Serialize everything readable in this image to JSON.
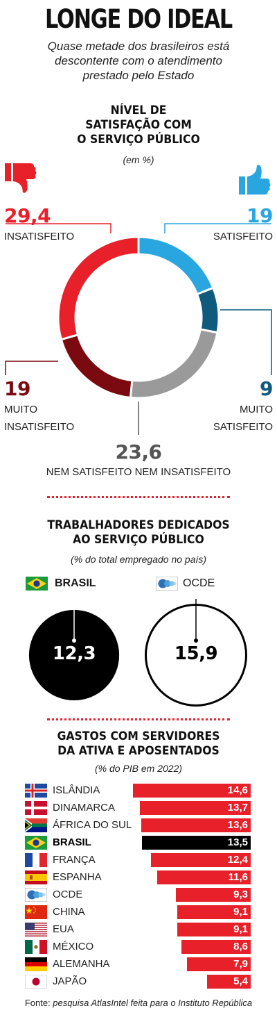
{
  "header": {
    "title": "LONGE DO IDEAL",
    "subtitle": [
      "Quase metade dos brasileiros está",
      "descontente com o atendimento",
      "prestado pelo Estado"
    ]
  },
  "colors": {
    "red": "#e8202a",
    "dark_red": "#7a0a0f",
    "gray": "#9a9a9a",
    "light_blue": "#29a6df",
    "dark_blue": "#0f5a7d",
    "black": "#000000"
  },
  "section1": {
    "title": [
      "NÍVEL DE",
      "SATISFAÇÃO COM",
      "O SERVIÇO PÚBLICO"
    ],
    "unit": "(em %)",
    "labels": {
      "insatisfeito_value": "29,4",
      "insatisfeito_label": "INSATISFEITO",
      "satisfeito_value": "19",
      "satisfeito_label": "SATISFEITO",
      "muito_insatisfeito_value": "19",
      "muito_insatisfeito_label": [
        "MUITO",
        "INSATISFEITO"
      ],
      "muito_satisfeito_value": "9",
      "muito_satisfeito_label": [
        "MUITO",
        "SATISFEITO"
      ],
      "nem_value": "23,6",
      "nem_label": "NEM SATISFEITO NEM INSATISFEITO"
    },
    "icons": [
      "thumbs-down-icon",
      "thumbs-up-icon"
    ]
  },
  "section2": {
    "title": [
      "TRABALHADORES DEDICADOS",
      "AO SERVIÇO PÚBLICO"
    ],
    "unit": "(% do total empregado no país)",
    "brasil_label": "BRASIL",
    "brasil_value": "12,3",
    "ocde_label": "OCDE",
    "ocde_value": "15,9"
  },
  "section3": {
    "title": [
      "GASTOS COM SERVIDORES",
      "DA ATIVA E APOSENTADOS"
    ],
    "unit": "(% do PIB em 2022)"
  },
  "chart_data": [
    {
      "type": "pie",
      "title": "NÍVEL DE SATISFAÇÃO COM O SERVIÇO PÚBLICO",
      "unit": "(em %)",
      "slices": [
        {
          "label": "SATISFEITO",
          "value": 19,
          "color": "#29a6df"
        },
        {
          "label": "MUITO SATISFEITO",
          "value": 9,
          "color": "#0f5a7d"
        },
        {
          "label": "NEM SATISFEITO NEM INSATISFEITO",
          "value": 23.6,
          "color": "#9a9a9a"
        },
        {
          "label": "MUITO INSATISFEITO",
          "value": 19,
          "color": "#7a0a0f"
        },
        {
          "label": "INSATISFEITO",
          "value": 29.4,
          "color": "#e8202a"
        }
      ]
    },
    {
      "type": "bar",
      "title": "TRABALHADORES DEDICADOS AO SERVIÇO PÚBLICO",
      "unit": "(% do total empregado no país)",
      "categories": [
        "BRASIL",
        "OCDE"
      ],
      "values": [
        12.3,
        15.9
      ]
    },
    {
      "type": "bar",
      "title": "GASTOS COM SERVIDORES DA ATIVA E APOSENTADOS",
      "unit": "(% do PIB em 2022)",
      "categories": [
        "ISLÂNDIA",
        "DINAMARCA",
        "ÁFRICA DO SUL",
        "BRASIL",
        "FRANÇA",
        "ESPANHA",
        "OCDE",
        "CHINA",
        "EUA",
        "MÉXICO",
        "ALEMANHA",
        "JAPÃO"
      ],
      "values": [
        14.6,
        13.7,
        13.6,
        13.5,
        12.4,
        11.6,
        9.3,
        9.1,
        9.1,
        8.6,
        7.9,
        5.4
      ],
      "value_labels": [
        "14,6",
        "13,7",
        "13,6",
        "13,5",
        "12,4",
        "11,6",
        "9,3",
        "9,1",
        "9,1",
        "8,6",
        "7,9",
        "5,4"
      ],
      "highlight": "BRASIL",
      "flags": [
        "iceland-flag-icon",
        "denmark-flag-icon",
        "south-africa-flag-icon",
        "brazil-flag-icon",
        "france-flag-icon",
        "spain-flag-icon",
        "oecd-logo-icon",
        "china-flag-icon",
        "usa-flag-icon",
        "mexico-flag-icon",
        "germany-flag-icon",
        "japan-flag-icon"
      ]
    }
  ],
  "footer": {
    "prefix": "Fonte:",
    "source": "pesquisa AtlasIntel feita para o Instituto República"
  }
}
